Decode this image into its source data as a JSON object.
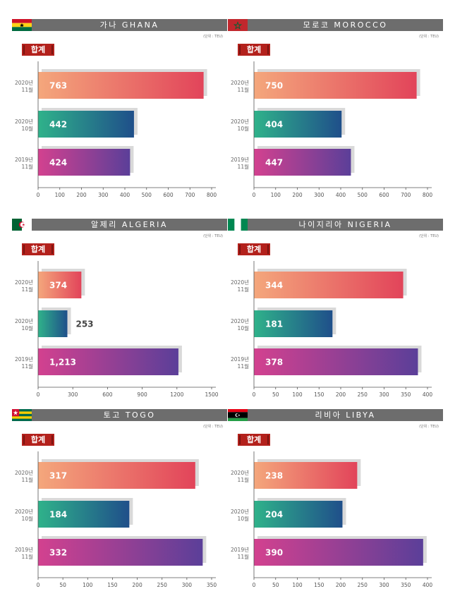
{
  "badge_label": "합계",
  "unit_label": "(단위 : TEU)",
  "category_labels": [
    [
      "2020년",
      "11월"
    ],
    [
      "2020년",
      "10월"
    ],
    [
      "2019년",
      "11월"
    ]
  ],
  "colors": {
    "header": "#6d6d6d",
    "badge": "#b3211c",
    "bar_2020_11": [
      "#f4a77c",
      "#e2445a"
    ],
    "bar_2020_10": [
      "#2fb28a",
      "#1f4f8a"
    ],
    "bar_2019_11": [
      "#d3418f",
      "#5b3f99"
    ],
    "shadow": "#d9d9d9",
    "axis": "#555555",
    "outside_label": "#444444"
  },
  "charts": [
    {
      "flag": "ghana-flag-icon",
      "title": "가나 GHANA",
      "chart_data": {
        "type": "bar",
        "orientation": "horizontal",
        "series": [
          {
            "values": [
              763,
              442,
              424
            ],
            "labels": [
              "763",
              "442",
              "424"
            ]
          }
        ],
        "xlim": [
          0,
          800
        ],
        "xticks": [
          "0",
          "100",
          "200",
          "300",
          "400",
          "500",
          "600",
          "700",
          "800"
        ]
      }
    },
    {
      "flag": "morocco-flag-icon",
      "title": "모로코 MOROCCO",
      "chart_data": {
        "type": "bar",
        "orientation": "horizontal",
        "series": [
          {
            "values": [
              750,
              404,
              447
            ],
            "labels": [
              "750",
              "404",
              "447"
            ]
          }
        ],
        "xlim": [
          0,
          800
        ],
        "xticks": [
          "0",
          "100",
          "200",
          "300",
          "400",
          "500",
          "600",
          "700",
          "800"
        ]
      }
    },
    {
      "flag": "algeria-flag-icon",
      "title": "알제리 ALGERIA",
      "chart_data": {
        "type": "bar",
        "orientation": "horizontal",
        "series": [
          {
            "values": [
              374,
              253,
              1213
            ],
            "labels": [
              "374",
              "253",
              "1,213"
            ]
          }
        ],
        "xlim": [
          0,
          1500
        ],
        "xticks": [
          "0",
          "300",
          "600",
          "900",
          "1200",
          "1500"
        ],
        "outside_labels": [
          false,
          true,
          false
        ]
      }
    },
    {
      "flag": "nigeria-flag-icon",
      "title": "나이지리아 NIGERIA",
      "chart_data": {
        "type": "bar",
        "orientation": "horizontal",
        "series": [
          {
            "values": [
              344,
              181,
              378
            ],
            "labels": [
              "344",
              "181",
              "378"
            ]
          }
        ],
        "xlim": [
          0,
          400
        ],
        "xticks": [
          "0",
          "50",
          "100",
          "150",
          "200",
          "250",
          "300",
          "350",
          "400"
        ]
      }
    },
    {
      "flag": "togo-flag-icon",
      "title": "토고 TOGO",
      "chart_data": {
        "type": "bar",
        "orientation": "horizontal",
        "series": [
          {
            "values": [
              317,
              184,
              332
            ],
            "labels": [
              "317",
              "184",
              "332"
            ]
          }
        ],
        "xlim": [
          0,
          350
        ],
        "xticks": [
          "0",
          "50",
          "100",
          "150",
          "200",
          "250",
          "300",
          "350"
        ]
      }
    },
    {
      "flag": "libya-flag-icon",
      "title": "리비아 LIBYA",
      "chart_data": {
        "type": "bar",
        "orientation": "horizontal",
        "series": [
          {
            "values": [
              238,
              204,
              390
            ],
            "labels": [
              "238",
              "204",
              "390"
            ]
          }
        ],
        "xlim": [
          0,
          400
        ],
        "xticks": [
          "0",
          "50",
          "100",
          "150",
          "200",
          "250",
          "300",
          "350",
          "400"
        ]
      }
    }
  ]
}
